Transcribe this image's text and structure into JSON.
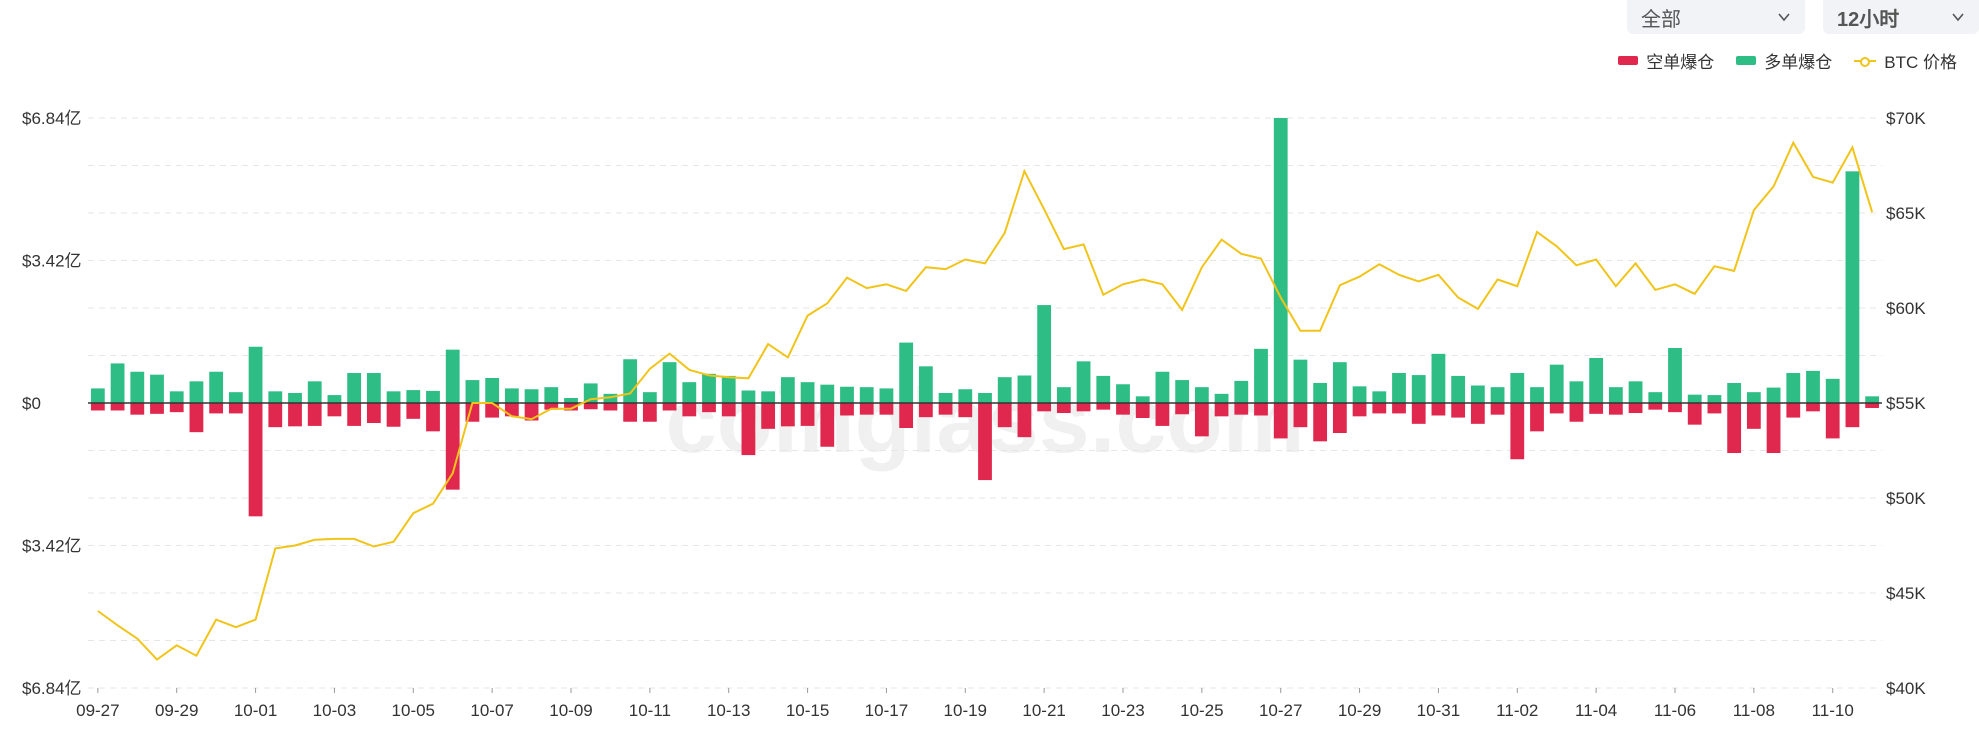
{
  "controls": {
    "exchange_select": "全部",
    "interval_select": "12小时"
  },
  "legend": {
    "short": "空单爆仓",
    "long": "多单爆仓",
    "price": "BTC 价格"
  },
  "colors": {
    "short": "#e0284f",
    "long": "#2ebd85",
    "price": "#f0c419",
    "grid": "#e6e6e6"
  },
  "watermark": "coinglass.com",
  "chart_data": {
    "type": "bar",
    "title": "",
    "left_axis": {
      "range": [
        -6.84,
        6.84
      ],
      "ticks": [
        {
          "value": 6.84,
          "label": "$6.84亿"
        },
        {
          "value": 3.42,
          "label": "$3.42亿"
        },
        {
          "value": 0,
          "label": "$0"
        },
        {
          "value": -3.42,
          "label": "$3.42亿"
        },
        {
          "value": -6.84,
          "label": "$6.84亿"
        }
      ]
    },
    "right_axis": {
      "range": [
        40000,
        70000
      ],
      "ticks": [
        {
          "value": 70000,
          "label": "$70K"
        },
        {
          "value": 65000,
          "label": "$65K"
        },
        {
          "value": 60000,
          "label": "$60K"
        },
        {
          "value": 55000,
          "label": "$55K"
        },
        {
          "value": 50000,
          "label": "$50K"
        },
        {
          "value": 45000,
          "label": "$45K"
        },
        {
          "value": 40000,
          "label": "$40K"
        }
      ]
    },
    "x_labels": [
      "09-27",
      "09-29",
      "10-01",
      "10-03",
      "10-05",
      "10-07",
      "10-09",
      "10-11",
      "10-13",
      "10-15",
      "10-17",
      "10-19",
      "10-21",
      "10-23",
      "10-25",
      "10-27",
      "10-29",
      "10-31",
      "11-02",
      "11-04",
      "11-06",
      "11-08",
      "11-10"
    ],
    "bars_per_label": 4,
    "grid": true,
    "legend_position": "top-right",
    "series": [
      {
        "name": "多单爆仓",
        "type": "bar",
        "values": [
          0.35,
          0.95,
          0.75,
          0.68,
          0.28,
          0.52,
          0.75,
          0.26,
          1.35,
          0.28,
          0.24,
          0.52,
          0.19,
          0.72,
          0.72,
          0.28,
          0.31,
          0.29,
          1.28,
          0.55,
          0.6,
          0.35,
          0.33,
          0.38,
          0.12,
          0.47,
          0.22,
          1.05,
          0.26,
          0.98,
          0.5,
          0.7,
          0.65,
          0.3,
          0.28,
          0.62,
          0.5,
          0.44,
          0.39,
          0.38,
          0.35,
          1.45,
          0.88,
          0.24,
          0.33,
          0.24,
          0.62,
          0.66,
          2.35,
          0.38,
          1.0,
          0.65,
          0.45,
          0.16,
          0.75,
          0.55,
          0.38,
          0.22,
          0.53,
          1.3,
          6.84,
          1.04,
          0.48,
          0.98,
          0.4,
          0.28,
          0.72,
          0.67,
          1.18,
          0.65,
          0.42,
          0.38,
          0.72,
          0.38,
          0.92,
          0.52,
          1.08,
          0.38,
          0.52,
          0.26,
          1.32,
          0.2,
          0.19,
          0.48,
          0.26,
          0.37,
          0.72,
          0.77,
          0.58,
          5.56,
          0.16
        ]
      },
      {
        "name": "空单爆仓",
        "type": "bar",
        "values": [
          -0.18,
          -0.18,
          -0.28,
          -0.26,
          -0.22,
          -0.7,
          -0.25,
          -0.25,
          -2.72,
          -0.58,
          -0.56,
          -0.55,
          -0.32,
          -0.55,
          -0.48,
          -0.57,
          -0.38,
          -0.68,
          -2.08,
          -0.45,
          -0.35,
          -0.32,
          -0.42,
          -0.16,
          -0.18,
          -0.15,
          -0.18,
          -0.45,
          -0.45,
          -0.18,
          -0.32,
          -0.22,
          -0.32,
          -1.25,
          -0.62,
          -0.56,
          -0.55,
          -1.05,
          -0.3,
          -0.28,
          -0.28,
          -0.6,
          -0.34,
          -0.28,
          -0.34,
          -1.85,
          -0.58,
          -0.82,
          -0.2,
          -0.24,
          -0.2,
          -0.16,
          -0.28,
          -0.36,
          -0.55,
          -0.27,
          -0.8,
          -0.32,
          -0.28,
          -0.3,
          -0.85,
          -0.58,
          -0.92,
          -0.72,
          -0.32,
          -0.25,
          -0.25,
          -0.5,
          -0.3,
          -0.35,
          -0.5,
          -0.28,
          -1.35,
          -0.68,
          -0.25,
          -0.45,
          -0.26,
          -0.28,
          -0.24,
          -0.16,
          -0.22,
          -0.52,
          -0.25,
          -1.2,
          -0.62,
          -1.2,
          -0.35,
          -0.2,
          -0.85,
          -0.58,
          -0.12
        ]
      },
      {
        "name": "BTC 价格",
        "type": "line",
        "axis": "right",
        "values": [
          44050,
          43300,
          42600,
          41500,
          42250,
          41700,
          43600,
          43200,
          43600,
          47350,
          47500,
          47800,
          47850,
          47850,
          47450,
          47700,
          49200,
          49700,
          51300,
          55000,
          55000,
          54300,
          54150,
          54700,
          54700,
          55200,
          55300,
          55500,
          56800,
          57600,
          56750,
          56450,
          56350,
          56300,
          58100,
          57400,
          59600,
          60250,
          61600,
          61050,
          61250,
          60900,
          62150,
          62050,
          62550,
          62350,
          63950,
          67200,
          65200,
          63100,
          63350,
          60700,
          61250,
          61500,
          61250,
          59900,
          62150,
          63600,
          62850,
          62600,
          60550,
          58800,
          58800,
          61200,
          61650,
          62300,
          61750,
          61400,
          61750,
          60550,
          59950,
          61500,
          61150,
          64000,
          63250,
          62250,
          62550,
          61150,
          62350,
          60950,
          61250,
          60750,
          62200,
          61950,
          65150,
          66400,
          68700,
          66900,
          66600,
          68450,
          65050
        ]
      }
    ]
  }
}
